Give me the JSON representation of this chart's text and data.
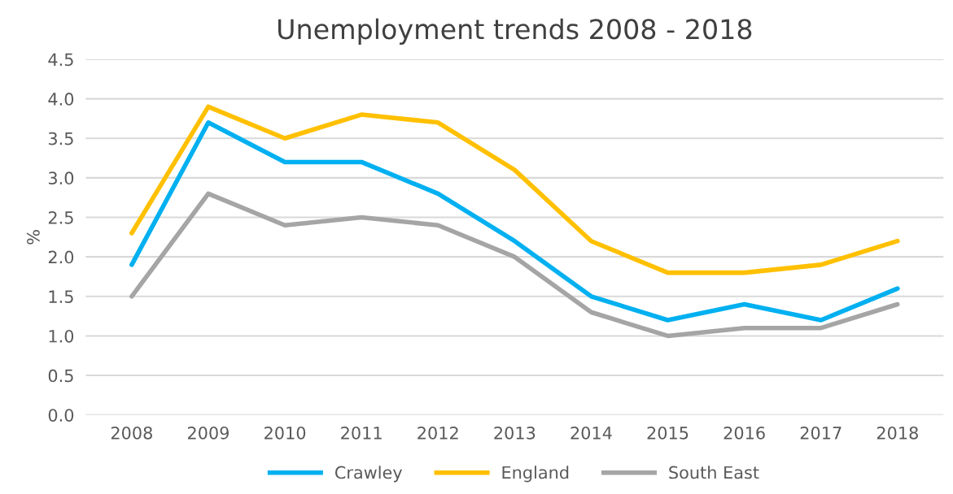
{
  "chart_data": {
    "type": "line",
    "title": "Unemployment trends 2008 - 2018",
    "ylabel": "%",
    "categories": [
      "2008",
      "2009",
      "2010",
      "2011",
      "2012",
      "2013",
      "2014",
      "2015",
      "2016",
      "2017",
      "2018"
    ],
    "series": [
      {
        "name": "Crawley",
        "color": "#00b0f0",
        "values": [
          1.9,
          3.7,
          3.2,
          3.2,
          2.8,
          2.2,
          1.5,
          1.2,
          1.4,
          1.2,
          1.6
        ]
      },
      {
        "name": "England",
        "color": "#ffc000",
        "values": [
          2.3,
          3.9,
          3.5,
          3.8,
          3.7,
          3.1,
          2.2,
          1.8,
          1.8,
          1.9,
          2.2
        ]
      },
      {
        "name": "South East",
        "color": "#a5a5a5",
        "values": [
          1.5,
          2.8,
          2.4,
          2.5,
          2.4,
          2.0,
          1.3,
          1.0,
          1.1,
          1.1,
          1.4
        ]
      }
    ],
    "ylim": [
      0,
      4.5
    ],
    "yticks": [
      {
        "value": 0,
        "label": "0.0"
      },
      {
        "value": 0.5,
        "label": "0.5"
      },
      {
        "value": 1,
        "label": "1.0"
      },
      {
        "value": 1.5,
        "label": "1.5"
      },
      {
        "value": 2,
        "label": "2.0"
      },
      {
        "value": 2.5,
        "label": "2.5"
      },
      {
        "value": 3,
        "label": "3.0"
      },
      {
        "value": 3.5,
        "label": "3.5"
      },
      {
        "value": 4,
        "label": "4.0"
      },
      {
        "value": 4.5,
        "label": "4.5"
      }
    ],
    "grid": "y",
    "legend": "bottom",
    "marker": "none",
    "line_style": "solid"
  }
}
